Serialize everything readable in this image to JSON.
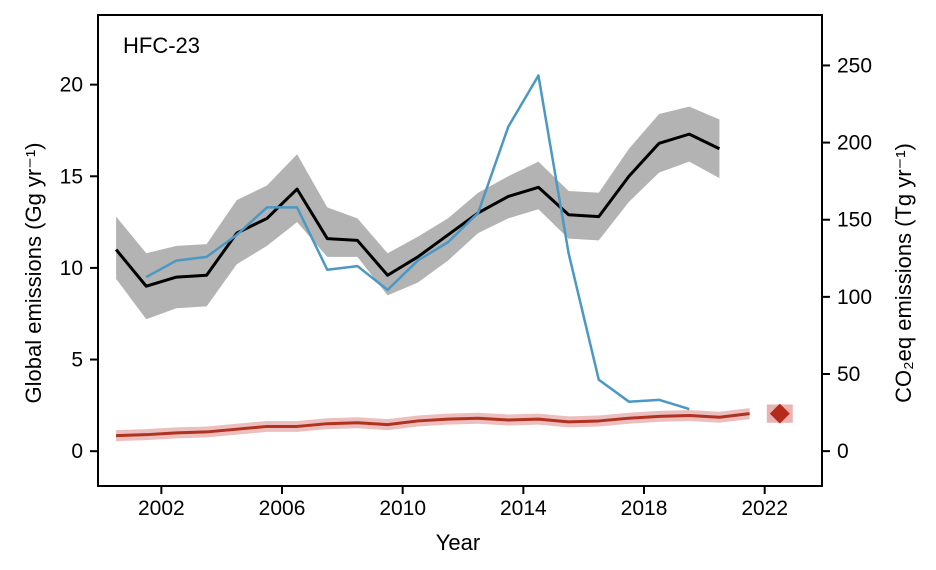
{
  "chart_data": {
    "type": "line",
    "panel_label": "HFC-23",
    "xlabel": "Year",
    "ylabel": "Global emissions (Gg yr⁻¹)",
    "y2label": "CO₂eq emissions (Tg yr⁻¹)",
    "xlim": [
      1999.9,
      2023.9
    ],
    "ylim": [
      -1.9,
      23.8
    ],
    "y2lim": [
      -22.6,
      282.7
    ],
    "x_ticks": [
      2002,
      2006,
      2010,
      2014,
      2018,
      2022
    ],
    "x_tick_labels": [
      "2002",
      "2006",
      "2010",
      "2014",
      "2018",
      "2022"
    ],
    "y_ticks": [
      0,
      5,
      10,
      15,
      20
    ],
    "y_tick_labels": [
      "0",
      "5",
      "10",
      "15",
      "20"
    ],
    "y2_ticks": [
      0,
      50,
      100,
      150,
      200,
      250
    ],
    "y2_tick_labels": [
      "0",
      "50",
      "100",
      "150",
      "200",
      "250"
    ],
    "series": [
      {
        "color": "#000000",
        "band_color": "#a6a6a6",
        "x": [
          2000.5,
          2001.5,
          2002.5,
          2003.5,
          2004.5,
          2005.5,
          2006.5,
          2007.5,
          2008.5,
          2009.5,
          2010.5,
          2011.5,
          2012.5,
          2013.5,
          2014.5,
          2015.5,
          2016.5,
          2017.5,
          2018.5,
          2019.5,
          2020.5
        ],
        "values": [
          11.0,
          9.0,
          9.5,
          9.6,
          11.9,
          12.7,
          14.3,
          11.6,
          11.5,
          9.6,
          10.6,
          11.8,
          13.0,
          13.9,
          14.4,
          12.9,
          12.8,
          15.0,
          16.8,
          17.3,
          16.5
        ],
        "lower": [
          9.4,
          7.2,
          7.8,
          7.9,
          10.2,
          11.2,
          12.5,
          10.6,
          10.6,
          8.5,
          9.2,
          10.4,
          11.9,
          12.7,
          13.2,
          11.6,
          11.5,
          13.6,
          15.2,
          15.8,
          14.9
        ],
        "upper": [
          12.8,
          10.8,
          11.2,
          11.3,
          13.7,
          14.5,
          16.2,
          13.3,
          12.7,
          10.8,
          11.7,
          12.7,
          14.1,
          15.0,
          15.8,
          14.2,
          14.1,
          16.5,
          18.4,
          18.8,
          18.1
        ]
      },
      {
        "color": "#4b98c4",
        "x": [
          2001.5,
          2002.5,
          2003.5,
          2004.5,
          2005.5,
          2006.5,
          2007.5,
          2008.5,
          2009.5,
          2010.5,
          2011.5,
          2012.5,
          2013.5,
          2014.5,
          2015.5,
          2016.5,
          2017.5,
          2018.5,
          2019.5
        ],
        "values": [
          9.5,
          10.4,
          10.6,
          11.8,
          13.3,
          13.3,
          9.9,
          10.1,
          8.8,
          10.4,
          11.4,
          13.0,
          17.7,
          20.5,
          10.8,
          3.9,
          2.7,
          2.8,
          2.3
        ]
      },
      {
        "color": "#b03221",
        "band_color": "#eab3b3",
        "x": [
          2000.5,
          2001.5,
          2002.5,
          2003.5,
          2004.5,
          2005.5,
          2006.5,
          2007.5,
          2008.5,
          2009.5,
          2010.5,
          2011.5,
          2012.5,
          2013.5,
          2014.5,
          2015.5,
          2016.5,
          2017.5,
          2018.5,
          2019.5,
          2020.5,
          2021.5
        ],
        "values": [
          0.85,
          0.9,
          1.0,
          1.05,
          1.2,
          1.35,
          1.35,
          1.5,
          1.55,
          1.45,
          1.65,
          1.75,
          1.8,
          1.7,
          1.75,
          1.6,
          1.65,
          1.8,
          1.9,
          1.95,
          1.85,
          2.05
        ],
        "lower": [
          0.55,
          0.6,
          0.7,
          0.75,
          0.9,
          1.05,
          1.05,
          1.2,
          1.25,
          1.15,
          1.35,
          1.45,
          1.5,
          1.4,
          1.45,
          1.3,
          1.35,
          1.5,
          1.6,
          1.65,
          1.55,
          1.75
        ],
        "upper": [
          1.15,
          1.2,
          1.3,
          1.35,
          1.5,
          1.65,
          1.65,
          1.8,
          1.85,
          1.75,
          1.95,
          2.05,
          2.1,
          2.0,
          2.05,
          1.9,
          1.95,
          2.1,
          2.2,
          2.25,
          2.15,
          2.35
        ]
      }
    ],
    "markers": [
      {
        "shape": "diamond",
        "color": "#b52a1c",
        "x": 2022.5,
        "y": 2.05,
        "band_color": "#eab3b3",
        "lower": 1.55,
        "upper": 2.55
      }
    ]
  }
}
